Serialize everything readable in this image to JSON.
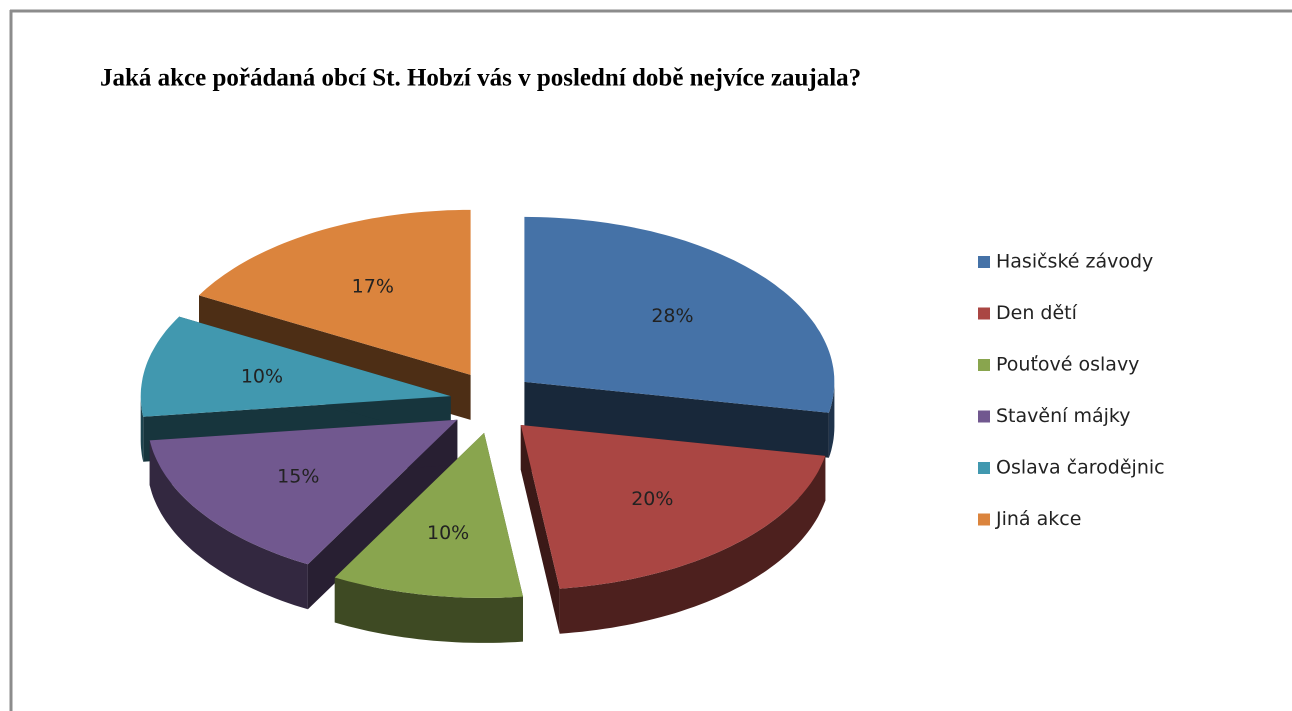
{
  "chart_data": {
    "type": "pie3d",
    "title": "Jaká akce pořádaná obcí St. Hobzí vás v poslední době nejvíce zaujala?",
    "categories": [
      "Hasičské závody",
      "Den dětí",
      "Pouťové oslavy",
      "Stavění májky",
      "Oslava čarodějnic",
      "Jiná akce"
    ],
    "values": [
      28,
      20,
      10,
      15,
      10,
      17
    ],
    "value_labels": [
      "28%",
      "20%",
      "10%",
      "15%",
      "10%",
      "17%"
    ],
    "colors": [
      "#4572a7",
      "#aa4643",
      "#89a54e",
      "#71588f",
      "#4198af",
      "#db843d"
    ],
    "legend": "right",
    "exploded": true
  }
}
